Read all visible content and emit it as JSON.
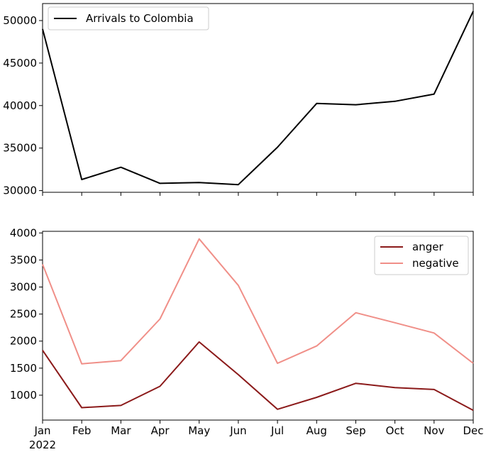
{
  "chart_data": [
    {
      "type": "line",
      "x": [
        "Jan",
        "Feb",
        "Mar",
        "Apr",
        "May",
        "Jun",
        "Jul",
        "Aug",
        "Sep",
        "Oct",
        "Nov",
        "Dec"
      ],
      "series": [
        {
          "name": "Arrivals to Colombia",
          "color": "#000000",
          "values": [
            49000,
            31300,
            32750,
            30850,
            30950,
            30700,
            35100,
            40250,
            40100,
            40500,
            41350,
            51100
          ]
        }
      ],
      "yticks": [
        30000,
        35000,
        40000,
        45000,
        50000
      ],
      "ylim": [
        29800,
        52000
      ],
      "legend": "top-left",
      "grid": false,
      "title": "",
      "xlabel": "",
      "ylabel": ""
    },
    {
      "type": "line",
      "x": [
        "Jan",
        "Feb",
        "Mar",
        "Apr",
        "May",
        "Jun",
        "Jul",
        "Aug",
        "Sep",
        "Oct",
        "Nov",
        "Dec"
      ],
      "xtick_labels": [
        "Jan",
        "Feb",
        "Mar",
        "Apr",
        "May",
        "Jun",
        "Jul",
        "Aug",
        "Sep",
        "Oct",
        "Nov",
        "Dec"
      ],
      "year_label": "2022",
      "series": [
        {
          "name": "anger",
          "color": "#8b1a1a",
          "values": [
            1830,
            770,
            810,
            1165,
            1985,
            1380,
            740,
            960,
            1220,
            1140,
            1105,
            720
          ]
        },
        {
          "name": "negative",
          "color": "#f08f88",
          "values": [
            3420,
            1580,
            1640,
            2410,
            3890,
            3030,
            1590,
            1910,
            2525,
            2340,
            2150,
            1590
          ]
        }
      ],
      "yticks": [
        1000,
        1500,
        2000,
        2500,
        3000,
        3500,
        4000
      ],
      "ylim": [
        540,
        4030
      ],
      "legend": "top-right",
      "grid": false,
      "title": "",
      "xlabel": "",
      "ylabel": ""
    }
  ]
}
